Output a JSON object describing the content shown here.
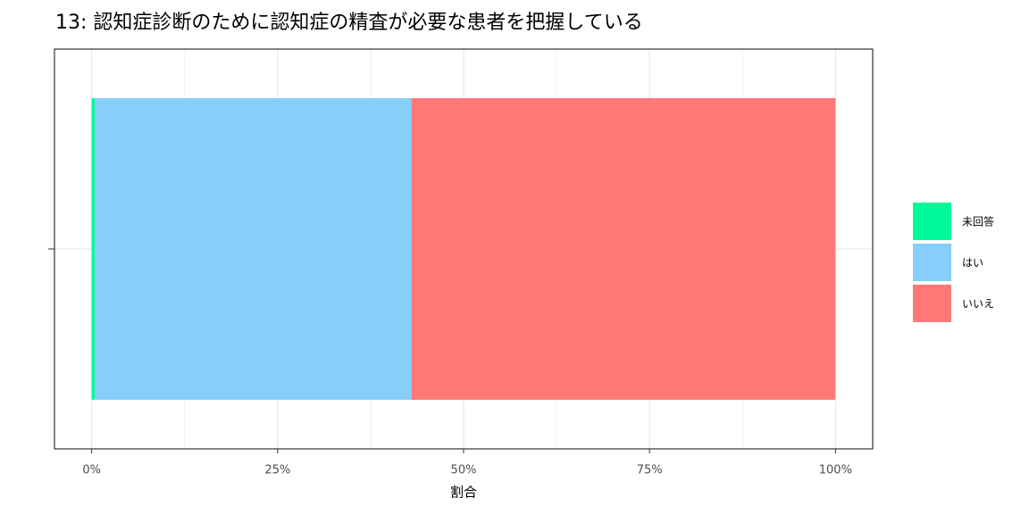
{
  "chart_data": {
    "type": "stacked_bar_horizontal",
    "title": "13: 認知症診断のために認知症の精査が必要な患者を把握している",
    "x_label": "割合",
    "categories": [
      null
    ],
    "series": [
      {
        "name": "未回答",
        "color": "#00FA9A",
        "values": [
          0.4
        ]
      },
      {
        "name": "はい",
        "color": "#87CEFA",
        "values": [
          42.6
        ]
      },
      {
        "name": "いいえ",
        "color": "#FF7878",
        "values": [
          57.0
        ]
      }
    ],
    "xlim": [
      -5,
      105
    ],
    "xticks": [
      {
        "value": 0,
        "label": "0%"
      },
      {
        "value": 25,
        "label": "25%"
      },
      {
        "value": 50,
        "label": "50%"
      },
      {
        "value": 75,
        "label": "75%"
      },
      {
        "value": 100,
        "label": "100%"
      }
    ],
    "minor_xticks": [
      12.5,
      37.5,
      62.5,
      87.5
    ],
    "grid": true,
    "legend": "right"
  }
}
